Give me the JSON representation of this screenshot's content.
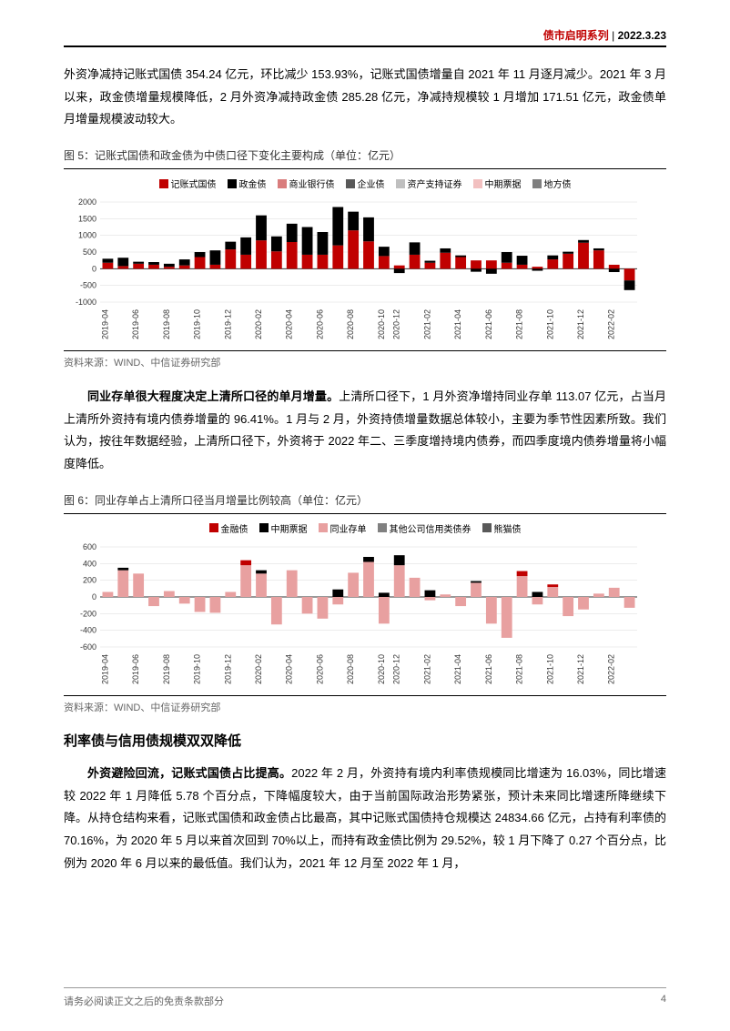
{
  "header": {
    "series": "债市启明系列",
    "date": "2022.3.23"
  },
  "para1": "外资净减持记账式国债 354.24 亿元，环比减少 153.93%，记账式国债增量自 2021 年 11 月逐月减少。2021 年 3 月以来，政金债增量规模降低，2 月外资净减持政金债 285.28 亿元，净减持规模较 1 月增加 171.51 亿元，政金债单月增量规模波动较大。",
  "chart5": {
    "title": "图 5：记账式国债和政金债为中债口径下变化主要构成（单位：亿元）",
    "source": "资料来源：WIND、中信证券研究部",
    "type": "stacked-bar",
    "legend": [
      {
        "label": "记账式国债",
        "color": "#c00000"
      },
      {
        "label": "政金债",
        "color": "#000000"
      },
      {
        "label": "商业银行债",
        "color": "#d97d7d"
      },
      {
        "label": "企业债",
        "color": "#595959"
      },
      {
        "label": "资产支持证券",
        "color": "#bfbfbf"
      },
      {
        "label": "中期票据",
        "color": "#f2c0c0"
      },
      {
        "label": "地方债",
        "color": "#7f7f7f"
      }
    ],
    "categories": [
      "2019-04",
      "2019-06",
      "2019-08",
      "2019-10",
      "2019-12",
      "2020-02",
      "2020-04",
      "2020-06",
      "2020-08",
      "2020-10",
      "2020-12",
      "2021-02",
      "2021-04",
      "2021-06",
      "2021-08",
      "2021-10",
      "2021-12",
      "2022-02"
    ],
    "ylim": [
      -1000,
      2000
    ],
    "ytick_step": 500,
    "stacks": [
      [
        {
          "c": 0,
          "v": 180
        },
        {
          "c": 1,
          "v": 120
        }
      ],
      [
        {
          "c": 0,
          "v": 80
        },
        {
          "c": 1,
          "v": 250
        }
      ],
      [
        {
          "c": 0,
          "v": 150
        },
        {
          "c": 1,
          "v": 60
        }
      ],
      [
        {
          "c": 0,
          "v": 120
        },
        {
          "c": 1,
          "v": 80
        }
      ],
      [
        {
          "c": 0,
          "v": 60
        },
        {
          "c": 1,
          "v": 90
        }
      ],
      [
        {
          "c": 0,
          "v": 100
        },
        {
          "c": 1,
          "v": 180
        }
      ],
      [
        {
          "c": 0,
          "v": 350
        },
        {
          "c": 1,
          "v": 150
        }
      ],
      [
        {
          "c": 0,
          "v": 120
        },
        {
          "c": 1,
          "v": 430
        }
      ],
      [
        {
          "c": 0,
          "v": 580
        },
        {
          "c": 1,
          "v": 230
        }
      ],
      [
        {
          "c": 0,
          "v": 420
        },
        {
          "c": 1,
          "v": 520
        }
      ],
      [
        {
          "c": 0,
          "v": 850
        },
        {
          "c": 1,
          "v": 750
        }
      ],
      [
        {
          "c": 0,
          "v": 520
        },
        {
          "c": 1,
          "v": 450
        }
      ],
      [
        {
          "c": 0,
          "v": 800
        },
        {
          "c": 1,
          "v": 550
        }
      ],
      [
        {
          "c": 0,
          "v": 420
        },
        {
          "c": 1,
          "v": 830
        }
      ],
      [
        {
          "c": 0,
          "v": 420
        },
        {
          "c": 1,
          "v": 680
        }
      ],
      [
        {
          "c": 0,
          "v": 700
        },
        {
          "c": 1,
          "v": 1150
        }
      ],
      [
        {
          "c": 0,
          "v": 1150
        },
        {
          "c": 1,
          "v": 560
        }
      ],
      [
        {
          "c": 0,
          "v": 820
        },
        {
          "c": 1,
          "v": 720
        }
      ],
      [
        {
          "c": 0,
          "v": 380
        },
        {
          "c": 1,
          "v": 280
        }
      ],
      [
        {
          "c": 0,
          "v": 100
        },
        {
          "c": 1,
          "v": -130
        }
      ],
      [
        {
          "c": 0,
          "v": 420
        },
        {
          "c": 1,
          "v": 370
        }
      ],
      [
        {
          "c": 0,
          "v": 180
        },
        {
          "c": 1,
          "v": 60
        }
      ],
      [
        {
          "c": 0,
          "v": 480
        },
        {
          "c": 1,
          "v": 130
        }
      ],
      [
        {
          "c": 0,
          "v": 350
        },
        {
          "c": 1,
          "v": 50
        }
      ],
      [
        {
          "c": 0,
          "v": 250
        },
        {
          "c": 1,
          "v": -90
        }
      ],
      [
        {
          "c": 0,
          "v": 250
        },
        {
          "c": 1,
          "v": -150
        }
      ],
      [
        {
          "c": 0,
          "v": 180
        },
        {
          "c": 1,
          "v": 320
        }
      ],
      [
        {
          "c": 0,
          "v": 120
        },
        {
          "c": 1,
          "v": 270
        }
      ],
      [
        {
          "c": 0,
          "v": 60
        },
        {
          "c": 1,
          "v": -60
        }
      ],
      [
        {
          "c": 0,
          "v": 280
        },
        {
          "c": 1,
          "v": 120
        }
      ],
      [
        {
          "c": 0,
          "v": 450
        },
        {
          "c": 1,
          "v": 60
        }
      ],
      [
        {
          "c": 0,
          "v": 780
        },
        {
          "c": 1,
          "v": 80
        }
      ],
      [
        {
          "c": 0,
          "v": 550
        },
        {
          "c": 1,
          "v": 60
        }
      ],
      [
        {
          "c": 0,
          "v": 120
        },
        {
          "c": 1,
          "v": -100
        }
      ],
      [
        {
          "c": 0,
          "v": -350
        },
        {
          "c": 1,
          "v": -290
        }
      ]
    ],
    "background": "#ffffff",
    "grid_color": "#d9d9d9"
  },
  "para2_lead": "同业存单很大程度决定上清所口径的单月增量。",
  "para2": "上清所口径下，1 月外资净增持同业存单 113.07 亿元，占当月上清所外资持有境内债券增量的 96.41%。1 月与 2 月，外资持债增量数据总体较小，主要为季节性因素所致。我们认为，按往年数据经验，上清所口径下，外资将于 2022 年二、三季度增持境内债券，而四季度境内债券增量将小幅度降低。",
  "chart6": {
    "title": "图 6：同业存单占上清所口径当月增量比例较高（单位：亿元）",
    "source": "资料来源：WIND、中信证券研究部",
    "type": "stacked-bar",
    "legend": [
      {
        "label": "金融债",
        "color": "#c00000"
      },
      {
        "label": "中期票据",
        "color": "#000000"
      },
      {
        "label": "同业存单",
        "color": "#e8a0a0"
      },
      {
        "label": "其他公司信用类债券",
        "color": "#808080"
      },
      {
        "label": "熊猫债",
        "color": "#595959"
      }
    ],
    "categories": [
      "2019-04",
      "2019-06",
      "2019-08",
      "2019-10",
      "2019-12",
      "2020-02",
      "2020-04",
      "2020-06",
      "2020-08",
      "2020-10",
      "2020-12",
      "2021-02",
      "2021-04",
      "2021-06",
      "2021-08",
      "2021-10",
      "2021-12",
      "2022-02"
    ],
    "ylim": [
      -600,
      600
    ],
    "ytick_step": 200,
    "stacks": [
      [
        {
          "c": 2,
          "v": 60
        }
      ],
      [
        {
          "c": 2,
          "v": 320
        },
        {
          "c": 1,
          "v": 30
        }
      ],
      [
        {
          "c": 2,
          "v": 280
        }
      ],
      [
        {
          "c": 2,
          "v": -110
        }
      ],
      [
        {
          "c": 2,
          "v": 70
        }
      ],
      [
        {
          "c": 2,
          "v": -80
        }
      ],
      [
        {
          "c": 2,
          "v": -180
        }
      ],
      [
        {
          "c": 2,
          "v": -190
        }
      ],
      [
        {
          "c": 2,
          "v": 60
        }
      ],
      [
        {
          "c": 2,
          "v": 380
        },
        {
          "c": 0,
          "v": 60
        }
      ],
      [
        {
          "c": 2,
          "v": 280
        },
        {
          "c": 1,
          "v": 40
        }
      ],
      [
        {
          "c": 2,
          "v": -330
        }
      ],
      [
        {
          "c": 2,
          "v": 320
        }
      ],
      [
        {
          "c": 2,
          "v": -200
        }
      ],
      [
        {
          "c": 2,
          "v": -260
        }
      ],
      [
        {
          "c": 2,
          "v": -90
        },
        {
          "c": 1,
          "v": 90
        }
      ],
      [
        {
          "c": 2,
          "v": 290
        }
      ],
      [
        {
          "c": 2,
          "v": 420
        },
        {
          "c": 1,
          "v": 60
        }
      ],
      [
        {
          "c": 2,
          "v": -320
        },
        {
          "c": 1,
          "v": 50
        }
      ],
      [
        {
          "c": 2,
          "v": 380
        },
        {
          "c": 1,
          "v": 120
        }
      ],
      [
        {
          "c": 2,
          "v": 230
        }
      ],
      [
        {
          "c": 2,
          "v": -40
        },
        {
          "c": 1,
          "v": 80
        }
      ],
      [
        {
          "c": 2,
          "v": 30
        }
      ],
      [
        {
          "c": 2,
          "v": -110
        }
      ],
      [
        {
          "c": 2,
          "v": 170
        },
        {
          "c": 1,
          "v": 20
        }
      ],
      [
        {
          "c": 2,
          "v": -320
        }
      ],
      [
        {
          "c": 2,
          "v": -490
        }
      ],
      [
        {
          "c": 2,
          "v": 250
        },
        {
          "c": 0,
          "v": 60
        }
      ],
      [
        {
          "c": 2,
          "v": -90
        },
        {
          "c": 1,
          "v": 60
        }
      ],
      [
        {
          "c": 2,
          "v": 120
        },
        {
          "c": 0,
          "v": 30
        }
      ],
      [
        {
          "c": 2,
          "v": -230
        }
      ],
      [
        {
          "c": 2,
          "v": -150
        }
      ],
      [
        {
          "c": 2,
          "v": 40
        }
      ],
      [
        {
          "c": 2,
          "v": 110
        }
      ],
      [
        {
          "c": 2,
          "v": -130
        }
      ]
    ],
    "background": "#ffffff",
    "grid_color": "#d9d9d9"
  },
  "section_title": "利率债与信用债规模双双降低",
  "para3_lead": "外资避险回流，记账式国债占比提高。",
  "para3": "2022 年 2 月，外资持有境内利率债规模同比增速为 16.03%，同比增速较 2022 年 1 月降低 5.78 个百分点，下降幅度较大，由于当前国际政治形势紧张，预计未来同比增速所降继续下降。从持仓结构来看，记账式国债和政金债占比最高，其中记账式国债持仓规模达 24834.66 亿元，占持有利率债的 70.16%，为 2020 年 5 月以来首次回到 70%以上，而持有政金债比例为 29.52%，较 1 月下降了 0.27 个百分点，比例为 2020 年 6 月以来的最低值。我们认为，2021 年 12 月至 2022 年 1 月，",
  "footer": {
    "disclaimer": "请务必阅读正文之后的免责条款部分",
    "page": "4"
  }
}
